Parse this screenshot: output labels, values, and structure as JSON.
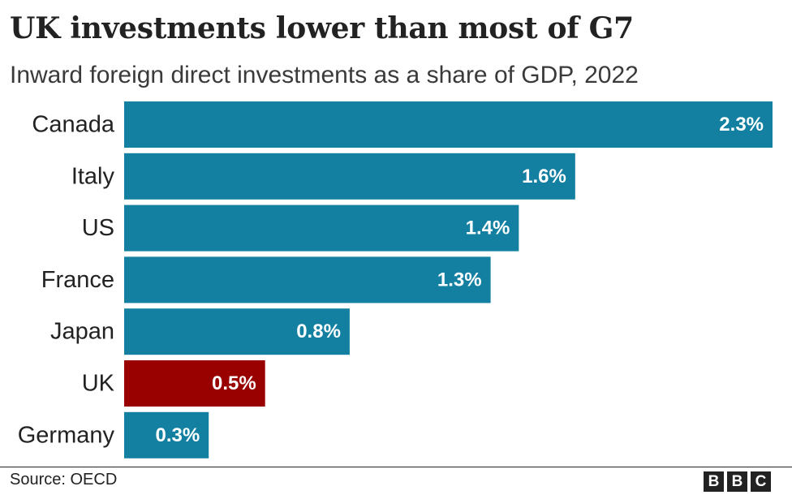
{
  "chart_data": {
    "type": "bar",
    "orientation": "horizontal",
    "title": "UK investments lower than most of G7",
    "subtitle": "Inward foreign direct investments as a share of GDP, 2022",
    "categories": [
      "Canada",
      "Italy",
      "US",
      "France",
      "Japan",
      "UK",
      "Germany"
    ],
    "values": [
      2.3,
      1.6,
      1.4,
      1.3,
      0.8,
      0.5,
      0.3
    ],
    "value_labels": [
      "2.3%",
      "1.6%",
      "1.4%",
      "1.3%",
      "0.8%",
      "0.5%",
      "0.3%"
    ],
    "highlight_category": "UK",
    "xlim": [
      0,
      2.3
    ],
    "grid": false,
    "legend": "none",
    "colors": {
      "default": "#1380a1",
      "highlight": "#990000",
      "value_label": "#ffffff"
    },
    "source": "Source: OECD"
  },
  "logo": {
    "letters": [
      "B",
      "B",
      "C"
    ],
    "color": "#222222"
  }
}
